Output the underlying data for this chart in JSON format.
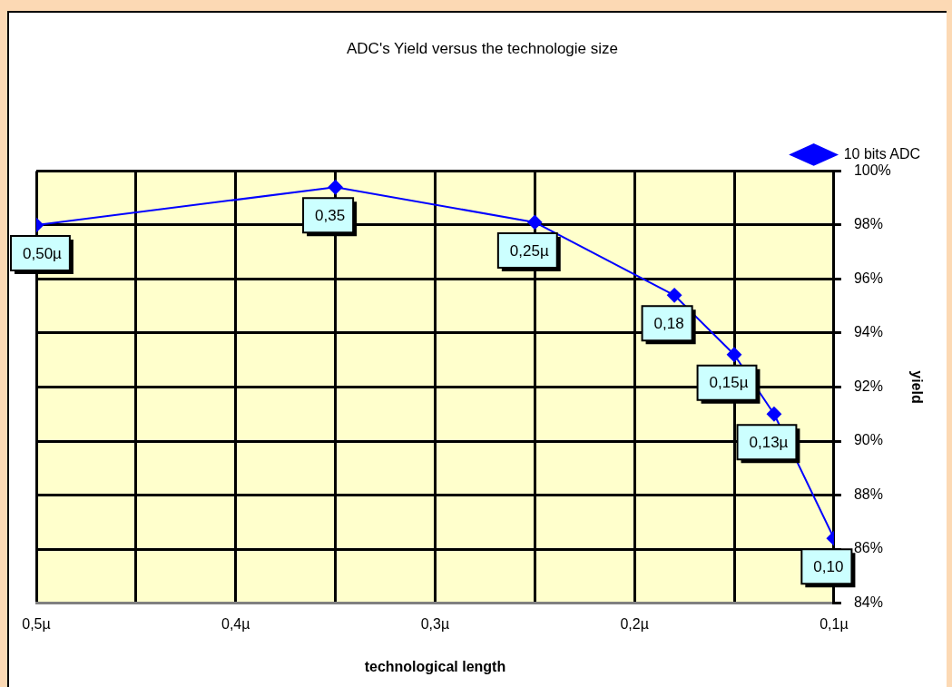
{
  "chart_data": {
    "type": "line",
    "title": "ADC's Yield versus the technologie size",
    "xlabel": "technological length",
    "ylabel": "yield",
    "x": [
      0.5,
      0.35,
      0.25,
      0.18,
      0.15,
      0.13,
      0.1
    ],
    "series": [
      {
        "name": "10 bits ADC",
        "color": "#0000ff",
        "values": [
          98.0,
          99.4,
          98.1,
          95.4,
          93.2,
          91.0,
          86.4
        ]
      }
    ],
    "xlim": [
      0.5,
      0.1
    ],
    "xticks": [
      {
        "value": 0.5,
        "label": "0,5µ"
      },
      {
        "value": 0.45,
        "label": null
      },
      {
        "value": 0.4,
        "label": "0,4µ"
      },
      {
        "value": 0.35,
        "label": null
      },
      {
        "value": 0.3,
        "label": "0,3µ"
      },
      {
        "value": 0.25,
        "label": null
      },
      {
        "value": 0.2,
        "label": "0,2µ"
      },
      {
        "value": 0.15,
        "label": null
      },
      {
        "value": 0.1,
        "label": "0,1µ"
      }
    ],
    "ylim": [
      84,
      100
    ],
    "yticks": [
      {
        "value": 84,
        "label": "84%"
      },
      {
        "value": 86,
        "label": "86%"
      },
      {
        "value": 88,
        "label": "88%"
      },
      {
        "value": 90,
        "label": "90%"
      },
      {
        "value": 92,
        "label": "92%"
      },
      {
        "value": 94,
        "label": "94%"
      },
      {
        "value": 96,
        "label": "96%"
      },
      {
        "value": 98,
        "label": "98%"
      },
      {
        "value": 100,
        "label": "100%"
      }
    ],
    "annotations": [
      {
        "text": "0,50µ",
        "x": 0.5,
        "y": 98.0
      },
      {
        "text": "0,35",
        "x": 0.35,
        "y": 99.4
      },
      {
        "text": "0,25µ",
        "x": 0.25,
        "y": 98.1
      },
      {
        "text": "0,18",
        "x": 0.18,
        "y": 95.4
      },
      {
        "text": "0,15µ",
        "x": 0.15,
        "y": 93.2
      },
      {
        "text": "0,13µ",
        "x": 0.13,
        "y": 91.0
      },
      {
        "text": "0,10",
        "x": 0.1,
        "y": 86.4
      }
    ],
    "grid": true,
    "legend": "top right",
    "marker": "diamond",
    "line_style": "solid"
  }
}
